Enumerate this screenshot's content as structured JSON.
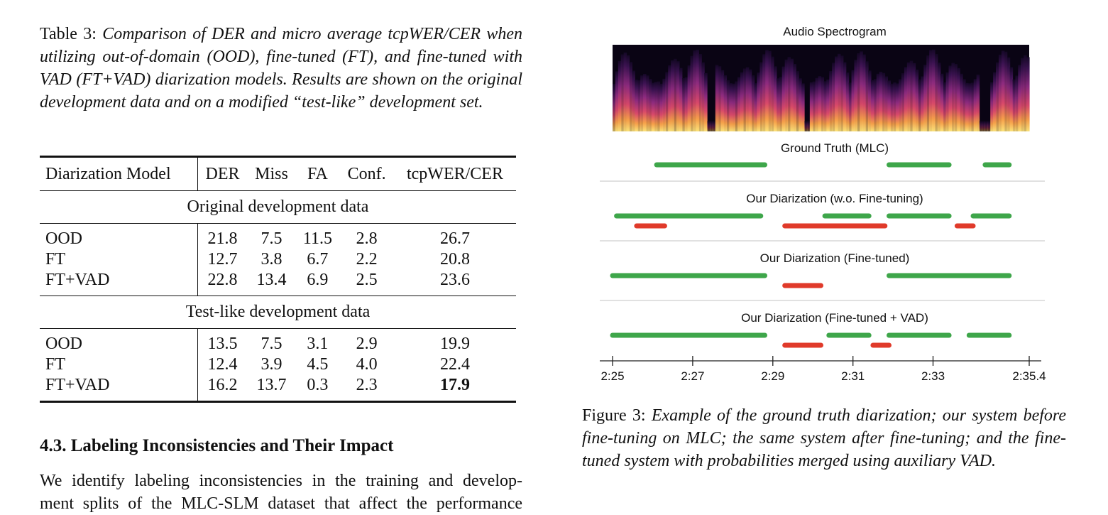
{
  "table_caption": {
    "label": "Table 3:",
    "text": "Comparison of DER and micro average tcpWER/CER when utilizing out-of-domain (OOD), fine-tuned (FT), and fine-tuned with VAD (FT+VAD) diarization models. Results are shown on the original development data and on a modified “test-like” development set."
  },
  "table": {
    "headers": [
      "Diarization Model",
      "DER",
      "Miss",
      "FA",
      "Conf.",
      "tcpWER/CER"
    ],
    "sections": [
      {
        "title": "Original development data",
        "rows": [
          [
            "OOD",
            "21.8",
            "7.5",
            "11.5",
            "2.8",
            "26.7"
          ],
          [
            "FT",
            "12.7",
            "3.8",
            "6.7",
            "2.2",
            "20.8"
          ],
          [
            "FT+VAD",
            "22.8",
            "13.4",
            "6.9",
            "2.5",
            "23.6"
          ]
        ]
      },
      {
        "title": "Test-like development data",
        "rows": [
          [
            "OOD",
            "13.5",
            "7.5",
            "3.1",
            "2.9",
            "19.9"
          ],
          [
            "FT",
            "12.4",
            "3.9",
            "4.5",
            "4.0",
            "22.4"
          ],
          [
            "FT+VAD",
            "16.2",
            "13.7",
            "0.3",
            "2.3",
            "17.9"
          ]
        ]
      }
    ]
  },
  "section_heading": "4.3.  Labeling Inconsistencies and Their Impact",
  "body_lines": [
    "We identify labeling inconsistencies in the training and develop-",
    "ment splits of the MLC-SLM dataset that affect the performance"
  ],
  "figure": {
    "spectrogram_title": "Audio Spectrogram",
    "axis_ticks": [
      {
        "label": "2:25",
        "t": 0
      },
      {
        "label": "2:27",
        "t": 2
      },
      {
        "label": "2:29",
        "t": 4
      },
      {
        "label": "2:31",
        "t": 6
      },
      {
        "label": "2:33",
        "t": 8
      },
      {
        "label": "2:35.4",
        "t": 10.4
      }
    ],
    "axis_max": 10.4,
    "colors": {
      "speech": "#3ea64a",
      "error": "#e03a2a"
    },
    "panels": [
      {
        "title": "Ground Truth (MLC)",
        "green": [
          [
            1.1,
            3.8
          ],
          [
            6.9,
            8.4
          ],
          [
            9.3,
            9.9
          ]
        ],
        "red": []
      },
      {
        "title": "Our Diarization (w.o. Fine-tuning)",
        "green": [
          [
            0.1,
            3.7
          ],
          [
            5.3,
            6.4
          ],
          [
            6.9,
            8.4
          ],
          [
            9.0,
            9.9
          ]
        ],
        "red": [
          [
            0.6,
            1.3
          ],
          [
            4.3,
            6.8
          ],
          [
            8.6,
            9.0
          ]
        ]
      },
      {
        "title": "Our Diarization (Fine-tuned)",
        "green": [
          [
            0.0,
            3.8
          ],
          [
            6.9,
            9.9
          ]
        ],
        "red": [
          [
            4.3,
            5.2
          ]
        ]
      },
      {
        "title": "Our Diarization (Fine-tuned + VAD)",
        "green": [
          [
            0.0,
            3.8
          ],
          [
            5.4,
            6.4
          ],
          [
            6.9,
            8.4
          ],
          [
            8.9,
            9.9
          ]
        ],
        "red": [
          [
            4.3,
            5.2
          ],
          [
            6.5,
            6.9
          ]
        ]
      }
    ]
  },
  "figure_caption": {
    "label": "Figure 3:",
    "text": "Example of the ground truth diarization; our system before fine-tuning on MLC; the same system after fine-tuning; and the fine-tuned system with probabilities merged using auxiliary VAD."
  }
}
